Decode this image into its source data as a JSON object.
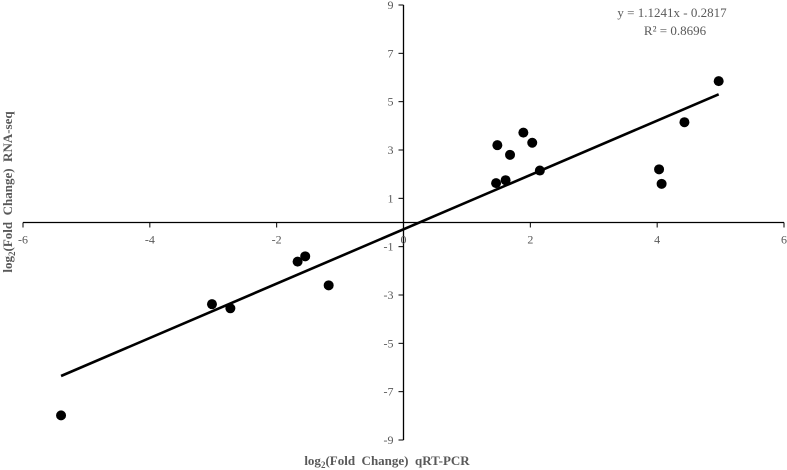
{
  "chart_data": {
    "type": "scatter",
    "xlabel_parts": {
      "prefix": "log",
      "sub": "2",
      "suffix": "(Fold  Change)  qRT-PCR"
    },
    "ylabel_parts": {
      "prefix": "log",
      "sub": "2",
      "suffix": "(Fold  Change)  RNA-seq"
    },
    "xlim": [
      -6,
      6
    ],
    "ylim": [
      -9,
      9
    ],
    "xticks": [
      -6,
      -4,
      -2,
      0,
      2,
      4,
      6
    ],
    "yticks": [
      -9,
      -7,
      -5,
      -3,
      -1,
      1,
      3,
      5,
      7,
      9
    ],
    "grid": false,
    "trendline": {
      "slope": 1.1241,
      "intercept": -0.2817,
      "x_range": [
        -5.4,
        4.97
      ]
    },
    "annotations": {
      "equation": "y = 1.1241x - 0.2817",
      "r_squared": "R² = 0.8696"
    },
    "points": [
      {
        "x": -5.4,
        "y": -7.98
      },
      {
        "x": -3.02,
        "y": -3.38
      },
      {
        "x": -2.73,
        "y": -3.55
      },
      {
        "x": -1.67,
        "y": -1.62
      },
      {
        "x": -1.55,
        "y": -1.4
      },
      {
        "x": -1.18,
        "y": -2.6
      },
      {
        "x": 1.48,
        "y": 3.2
      },
      {
        "x": 1.46,
        "y": 1.63
      },
      {
        "x": 1.61,
        "y": 1.75
      },
      {
        "x": 1.68,
        "y": 2.8
      },
      {
        "x": 1.89,
        "y": 3.72
      },
      {
        "x": 2.03,
        "y": 3.3
      },
      {
        "x": 2.15,
        "y": 2.15
      },
      {
        "x": 4.03,
        "y": 2.2
      },
      {
        "x": 4.07,
        "y": 1.6
      },
      {
        "x": 4.43,
        "y": 4.15
      },
      {
        "x": 4.97,
        "y": 5.85
      }
    ]
  },
  "style": {
    "point_color": "#000000",
    "line_color": "#000000",
    "axis_color": "#000000",
    "text_color": "#595959"
  }
}
